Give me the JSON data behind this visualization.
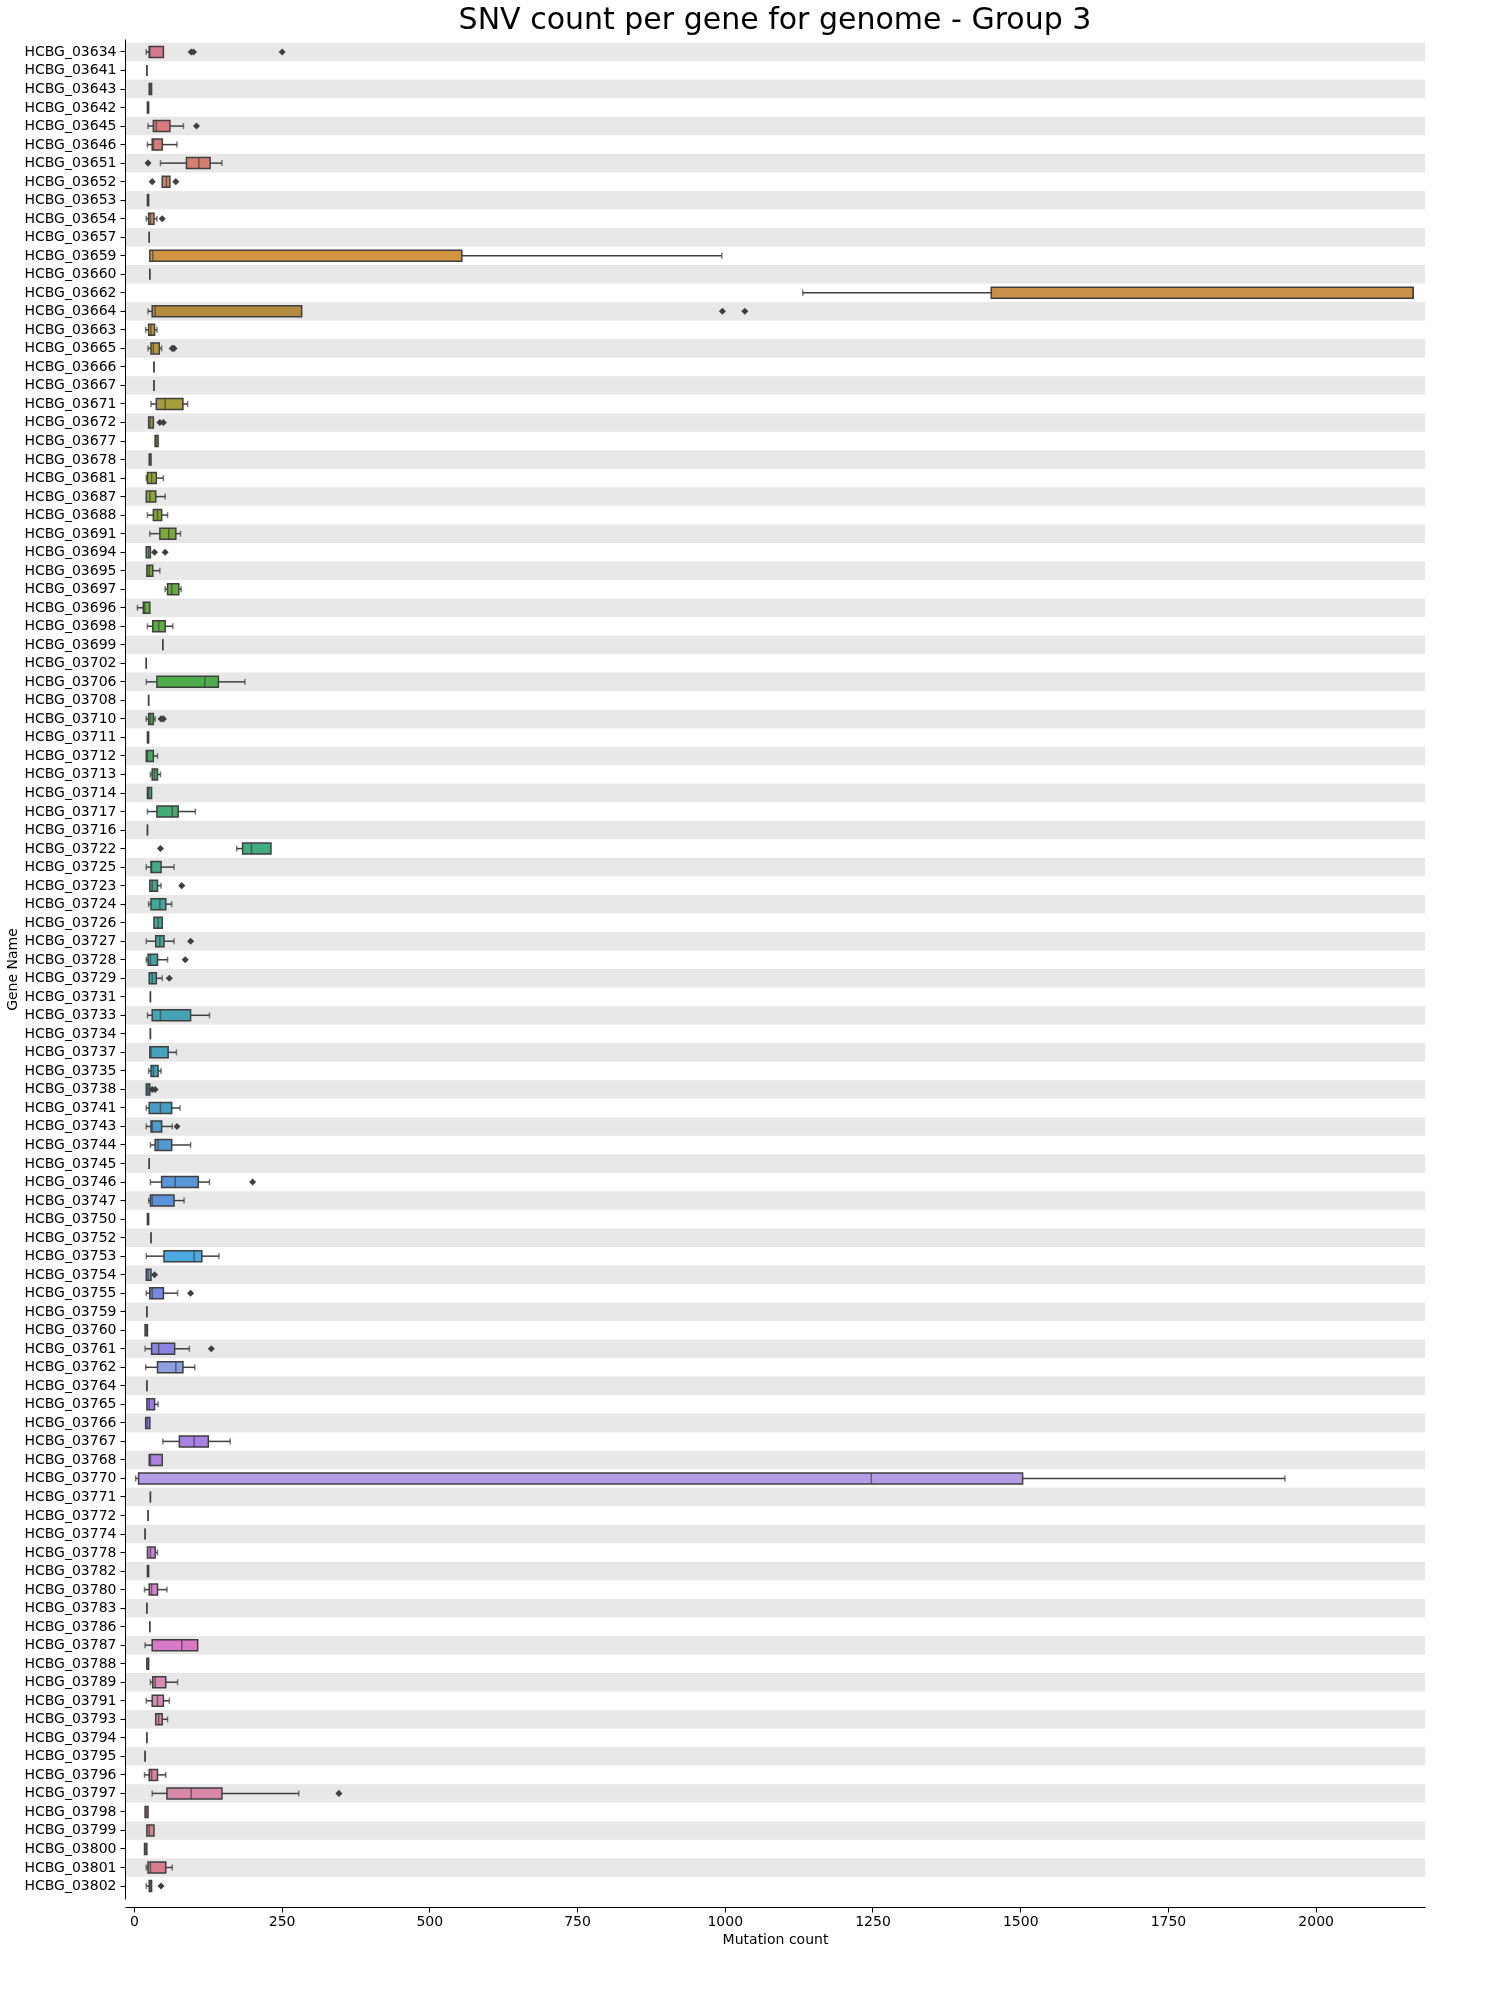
{
  "chart_data": {
    "type": "box",
    "title": "SNV count per gene for genome - Group 3",
    "xlabel": "Mutation count",
    "ylabel": "Gene Name",
    "orientation": "horizontal",
    "grid": false,
    "xlim": [
      -15,
      2185
    ],
    "xticks": [
      0,
      250,
      500,
      750,
      1000,
      1250,
      1500,
      1750,
      2000
    ],
    "categories": [
      "HCBG_03634",
      "HCBG_03641",
      "HCBG_03643",
      "HCBG_03642",
      "HCBG_03645",
      "HCBG_03646",
      "HCBG_03651",
      "HCBG_03652",
      "HCBG_03653",
      "HCBG_03654",
      "HCBG_03657",
      "HCBG_03659",
      "HCBG_03660",
      "HCBG_03662",
      "HCBG_03664",
      "HCBG_03663",
      "HCBG_03665",
      "HCBG_03666",
      "HCBG_03667",
      "HCBG_03671",
      "HCBG_03672",
      "HCBG_03677",
      "HCBG_03678",
      "HCBG_03681",
      "HCBG_03687",
      "HCBG_03688",
      "HCBG_03691",
      "HCBG_03694",
      "HCBG_03695",
      "HCBG_03697",
      "HCBG_03696",
      "HCBG_03698",
      "HCBG_03699",
      "HCBG_03702",
      "HCBG_03706",
      "HCBG_03708",
      "HCBG_03710",
      "HCBG_03711",
      "HCBG_03712",
      "HCBG_03713",
      "HCBG_03714",
      "HCBG_03717",
      "HCBG_03716",
      "HCBG_03722",
      "HCBG_03725",
      "HCBG_03723",
      "HCBG_03724",
      "HCBG_03726",
      "HCBG_03727",
      "HCBG_03728",
      "HCBG_03729",
      "HCBG_03731",
      "HCBG_03733",
      "HCBG_03734",
      "HCBG_03737",
      "HCBG_03735",
      "HCBG_03738",
      "HCBG_03741",
      "HCBG_03743",
      "HCBG_03744",
      "HCBG_03745",
      "HCBG_03746",
      "HCBG_03747",
      "HCBG_03750",
      "HCBG_03752",
      "HCBG_03753",
      "HCBG_03754",
      "HCBG_03755",
      "HCBG_03759",
      "HCBG_03760",
      "HCBG_03761",
      "HCBG_03762",
      "HCBG_03764",
      "HCBG_03765",
      "HCBG_03766",
      "HCBG_03767",
      "HCBG_03768",
      "HCBG_03770",
      "HCBG_03771",
      "HCBG_03772",
      "HCBG_03774",
      "HCBG_03778",
      "HCBG_03782",
      "HCBG_03780",
      "HCBG_03783",
      "HCBG_03786",
      "HCBG_03787",
      "HCBG_03788",
      "HCBG_03789",
      "HCBG_03791",
      "HCBG_03793",
      "HCBG_03794",
      "HCBG_03795",
      "HCBG_03796",
      "HCBG_03797",
      "HCBG_03798",
      "HCBG_03799",
      "HCBG_03800",
      "HCBG_03801",
      "HCBG_03802"
    ],
    "colors": [
      "#d6798c",
      "#3f3f3f",
      "#d67a86",
      "#d67b82",
      "#d67c7d",
      "#d57d78",
      "#d47f72",
      "#d3816c",
      "#d2836a",
      "#d18565",
      "#3f3f3f",
      "#d39442",
      "#3f3f3f",
      "#c9904c",
      "#b48b3f",
      "#be963d",
      "#b8983d",
      "#3f3f3f",
      "#3f3f3f",
      "#a69e3d",
      "#a0a03d",
      "#9aa23d",
      "#94a43d",
      "#8ea53d",
      "#88a63d",
      "#82a73d",
      "#7ca83d",
      "#76a93d",
      "#70aa3e",
      "#6aab40",
      "#64ab42",
      "#5eac44",
      "#3f3f3f",
      "#3f3f3f",
      "#4ead4c",
      "#3f3f3f",
      "#4aad58",
      "#48ad5e",
      "#47ad64",
      "#46ad6a",
      "#45ad70",
      "#44ad76",
      "#3f3f3f",
      "#43ac82",
      "#43ab88",
      "#43aa8e",
      "#43a994",
      "#43a89a",
      "#43a79f",
      "#43a6a4",
      "#44a5a9",
      "#3f3f3f",
      "#45a3b3",
      "#3f3f3f",
      "#47a1bc",
      "#489fc1",
      "#4a9ec5",
      "#4c9cc9",
      "#4e9bcd",
      "#5199d1",
      "#3f3f3f",
      "#5895d9",
      "#5c93dc",
      "#6191de",
      "#3f3f3f",
      "#4ea9e0",
      "#718be2",
      "#7789e3",
      "#3f3f3f",
      "#8385e4",
      "#8984e4",
      "#8ca0e0",
      "#3f3f3f",
      "#9b81e4",
      "#a181e4",
      "#a781e3",
      "#ad81e2",
      "#b69ce6",
      "#3f3f3f",
      "#3f3f3f",
      "#3f3f3f",
      "#c886d6",
      "#cc87d2",
      "#d088cd",
      "#3f3f3f",
      "#3f3f3f",
      "#d77ac8",
      "#d88bba",
      "#d88bb6",
      "#d98ab4",
      "#d989ae",
      "#3f3f3f",
      "#3f3f3f",
      "#d8869c",
      "#d888a8",
      "#d88596",
      "#d88490",
      "#d8838b",
      "#d67c8e",
      "#d88182"
    ],
    "boxes": [
      {
        "low": 21,
        "q1": 26,
        "median": 27,
        "q3": 50,
        "high": 50,
        "outliers": [
          97,
          101,
          251
        ]
      },
      {
        "low": 22,
        "q1": 22,
        "median": 22,
        "q3": 22,
        "high": 22
      },
      {
        "low": 26,
        "q1": 26,
        "median": 28,
        "q3": 30,
        "high": 30
      },
      {
        "low": 23,
        "q1": 23,
        "median": 24,
        "q3": 25,
        "high": 25
      },
      {
        "low": 24,
        "q1": 33,
        "median": 38,
        "q3": 61,
        "high": 84,
        "outliers": [
          106
        ]
      },
      {
        "low": 23,
        "q1": 31,
        "median": 33,
        "q3": 48,
        "high": 73
      },
      {
        "low": 45,
        "q1": 89,
        "median": 110,
        "q3": 129,
        "high": 149,
        "outliers": [
          24
        ]
      },
      {
        "low": 48,
        "q1": 48,
        "median": 55,
        "q3": 61,
        "high": 61,
        "outliers": [
          31,
          71
        ]
      },
      {
        "low": 23,
        "q1": 23,
        "median": 24,
        "q3": 25,
        "high": 25
      },
      {
        "low": 21,
        "q1": 25,
        "median": 28,
        "q3": 34,
        "high": 39,
        "outliers": [
          48
        ]
      },
      {
        "low": 26,
        "q1": 26,
        "median": 26,
        "q3": 26,
        "high": 26
      },
      {
        "low": 27,
        "q1": 27,
        "median": 32,
        "q3": 555,
        "high": 995
      },
      {
        "low": 27,
        "q1": 27,
        "median": 27,
        "q3": 27,
        "high": 27
      },
      {
        "low": 1132,
        "q1": 1451,
        "median": 2165,
        "q3": 2165,
        "high": 2165
      },
      {
        "low": 24,
        "q1": 31,
        "median": 36,
        "q3": 284,
        "high": 284,
        "outliers": [
          996,
          1034
        ]
      },
      {
        "low": 20,
        "q1": 25,
        "median": 29,
        "q3": 35,
        "high": 39
      },
      {
        "low": 24,
        "q1": 29,
        "median": 33,
        "q3": 43,
        "high": 47,
        "outliers": [
          65,
          68
        ]
      },
      {
        "low": 34,
        "q1": 34,
        "median": 34,
        "q3": 34,
        "high": 34
      },
      {
        "low": 34,
        "q1": 34,
        "median": 34,
        "q3": 34,
        "high": 34
      },
      {
        "low": 29,
        "q1": 38,
        "median": 53,
        "q3": 83,
        "high": 91
      },
      {
        "low": 25,
        "q1": 25,
        "median": 28,
        "q3": 33,
        "high": 33,
        "outliers": [
          44,
          50
        ]
      },
      {
        "low": 36,
        "q1": 36,
        "median": 38,
        "q3": 41,
        "high": 41
      },
      {
        "low": 26,
        "q1": 26,
        "median": 27,
        "q3": 29,
        "high": 29
      },
      {
        "low": 21,
        "q1": 23,
        "median": 30,
        "q3": 38,
        "high": 50
      },
      {
        "low": 21,
        "q1": 21,
        "median": 27,
        "q3": 37,
        "high": 53
      },
      {
        "low": 23,
        "q1": 33,
        "median": 40,
        "q3": 47,
        "high": 57
      },
      {
        "low": 27,
        "q1": 44,
        "median": 59,
        "q3": 71,
        "high": 79
      },
      {
        "low": 21,
        "q1": 21,
        "median": 25,
        "q3": 28,
        "high": 28,
        "outliers": [
          35,
          53
        ]
      },
      {
        "low": 22,
        "q1": 22,
        "median": 26,
        "q3": 32,
        "high": 44
      },
      {
        "low": 53,
        "q1": 57,
        "median": 64,
        "q3": 76,
        "high": 80
      },
      {
        "low": 6,
        "q1": 16,
        "median": 18,
        "q3": 27,
        "high": 27
      },
      {
        "low": 23,
        "q1": 32,
        "median": 42,
        "q3": 53,
        "high": 66
      },
      {
        "low": 49,
        "q1": 49,
        "median": 49,
        "q3": 49,
        "high": 49
      },
      {
        "low": 21,
        "q1": 21,
        "median": 21,
        "q3": 21,
        "high": 21
      },
      {
        "low": 21,
        "q1": 39,
        "median": 120,
        "q3": 143,
        "high": 188
      },
      {
        "low": 25,
        "q1": 25,
        "median": 25,
        "q3": 25,
        "high": 25
      },
      {
        "low": 21,
        "q1": 25,
        "median": 28,
        "q3": 33,
        "high": 36,
        "outliers": [
          46,
          50
        ]
      },
      {
        "low": 23,
        "q1": 23,
        "median": 24,
        "q3": 25,
        "high": 25
      },
      {
        "low": 21,
        "q1": 21,
        "median": 23,
        "q3": 33,
        "high": 40
      },
      {
        "low": 28,
        "q1": 31,
        "median": 35,
        "q3": 40,
        "high": 45
      },
      {
        "low": 23,
        "q1": 23,
        "median": 25,
        "q3": 30,
        "high": 30
      },
      {
        "low": 23,
        "q1": 39,
        "median": 65,
        "q3": 75,
        "high": 104
      },
      {
        "low": 23,
        "q1": 23,
        "median": 23,
        "q3": 23,
        "high": 23
      },
      {
        "low": 174,
        "q1": 184,
        "median": 199,
        "q3": 232,
        "high": 232,
        "outliers": [
          45
        ]
      },
      {
        "low": 21,
        "q1": 29,
        "median": 30,
        "q3": 46,
        "high": 68
      },
      {
        "low": 27,
        "q1": 27,
        "median": 31,
        "q3": 40,
        "high": 46,
        "outliers": [
          81
        ]
      },
      {
        "low": 25,
        "q1": 29,
        "median": 44,
        "q3": 54,
        "high": 64
      },
      {
        "low": 34,
        "q1": 34,
        "median": 41,
        "q3": 48,
        "high": 48
      },
      {
        "low": 21,
        "q1": 37,
        "median": 44,
        "q3": 51,
        "high": 68,
        "outliers": [
          96
        ]
      },
      {
        "low": 21,
        "q1": 24,
        "median": 28,
        "q3": 40,
        "high": 57,
        "outliers": [
          87
        ]
      },
      {
        "low": 26,
        "q1": 26,
        "median": 31,
        "q3": 38,
        "high": 48,
        "outliers": [
          60
        ]
      },
      {
        "low": 28,
        "q1": 28,
        "median": 28,
        "q3": 28,
        "high": 28
      },
      {
        "low": 23,
        "q1": 31,
        "median": 45,
        "q3": 96,
        "high": 128
      },
      {
        "low": 28,
        "q1": 28,
        "median": 28,
        "q3": 28,
        "high": 28
      },
      {
        "low": 27,
        "q1": 27,
        "median": 29,
        "q3": 58,
        "high": 72
      },
      {
        "low": 25,
        "q1": 29,
        "median": 33,
        "q3": 41,
        "high": 46
      },
      {
        "low": 21,
        "q1": 21,
        "median": 24,
        "q3": 27,
        "high": 27,
        "outliers": [
          31,
          36
        ]
      },
      {
        "low": 21,
        "q1": 26,
        "median": 45,
        "q3": 64,
        "high": 78
      },
      {
        "low": 21,
        "q1": 29,
        "median": 31,
        "q3": 47,
        "high": 65,
        "outliers": [
          73
        ]
      },
      {
        "low": 28,
        "q1": 36,
        "median": 41,
        "q3": 64,
        "high": 96
      },
      {
        "low": 26,
        "q1": 26,
        "median": 26,
        "q3": 26,
        "high": 26
      },
      {
        "low": 28,
        "q1": 47,
        "median": 70,
        "q3": 109,
        "high": 128,
        "outliers": [
          201
        ]
      },
      {
        "low": 25,
        "q1": 28,
        "median": 31,
        "q3": 68,
        "high": 85
      },
      {
        "low": 23,
        "q1": 23,
        "median": 24,
        "q3": 25,
        "high": 25
      },
      {
        "low": 29,
        "q1": 29,
        "median": 29,
        "q3": 29,
        "high": 29
      },
      {
        "low": 21,
        "q1": 51,
        "median": 102,
        "q3": 115,
        "high": 144
      },
      {
        "low": 21,
        "q1": 21,
        "median": 24,
        "q3": 29,
        "high": 29,
        "outliers": [
          35
        ]
      },
      {
        "low": 21,
        "q1": 27,
        "median": 31,
        "q3": 50,
        "high": 74,
        "outliers": [
          96
        ]
      },
      {
        "low": 22,
        "q1": 22,
        "median": 22,
        "q3": 22,
        "high": 22
      },
      {
        "low": 19,
        "q1": 19,
        "median": 21,
        "q3": 23,
        "high": 23
      },
      {
        "low": 19,
        "q1": 30,
        "median": 42,
        "q3": 69,
        "high": 94,
        "outliers": [
          131
        ]
      },
      {
        "low": 20,
        "q1": 40,
        "median": 71,
        "q3": 83,
        "high": 103
      },
      {
        "low": 22,
        "q1": 22,
        "median": 22,
        "q3": 22,
        "high": 22
      },
      {
        "low": 22,
        "q1": 22,
        "median": 26,
        "q3": 35,
        "high": 41
      },
      {
        "low": 20,
        "q1": 20,
        "median": 23,
        "q3": 27,
        "high": 27
      },
      {
        "low": 49,
        "q1": 77,
        "median": 102,
        "q3": 126,
        "high": 163
      },
      {
        "low": 26,
        "q1": 26,
        "median": 28,
        "q3": 48,
        "high": 48
      },
      {
        "low": 3,
        "q1": 8,
        "median": 1248,
        "q3": 1504,
        "high": 1948
      },
      {
        "low": 28,
        "q1": 28,
        "median": 28,
        "q3": 28,
        "high": 28
      },
      {
        "low": 24,
        "q1": 24,
        "median": 24,
        "q3": 24,
        "high": 24
      },
      {
        "low": 19,
        "q1": 19,
        "median": 19,
        "q3": 19,
        "high": 19
      },
      {
        "low": 23,
        "q1": 23,
        "median": 28,
        "q3": 36,
        "high": 40
      },
      {
        "low": 23,
        "q1": 23,
        "median": 24,
        "q3": 25,
        "high": 25
      },
      {
        "low": 18,
        "q1": 26,
        "median": 30,
        "q3": 40,
        "high": 56
      },
      {
        "low": 22,
        "q1": 22,
        "median": 22,
        "q3": 22,
        "high": 22
      },
      {
        "low": 27,
        "q1": 27,
        "median": 27,
        "q3": 27,
        "high": 27
      },
      {
        "low": 19,
        "q1": 31,
        "median": 81,
        "q3": 108,
        "high": 108
      },
      {
        "low": 22,
        "q1": 22,
        "median": 23,
        "q3": 25,
        "high": 25
      },
      {
        "low": 28,
        "q1": 32,
        "median": 36,
        "q3": 54,
        "high": 74
      },
      {
        "low": 21,
        "q1": 31,
        "median": 40,
        "q3": 50,
        "high": 60
      },
      {
        "low": 37,
        "q1": 37,
        "median": 42,
        "q3": 48,
        "high": 57
      },
      {
        "low": 22,
        "q1": 22,
        "median": 22,
        "q3": 22,
        "high": 22
      },
      {
        "low": 19,
        "q1": 19,
        "median": 19,
        "q3": 19,
        "high": 19
      },
      {
        "low": 18,
        "q1": 26,
        "median": 30,
        "q3": 40,
        "high": 54
      },
      {
        "low": 31,
        "q1": 56,
        "median": 97,
        "q3": 149,
        "high": 279,
        "outliers": [
          347
        ]
      },
      {
        "low": 19,
        "q1": 19,
        "median": 21,
        "q3": 24,
        "high": 24
      },
      {
        "low": 22,
        "q1": 22,
        "median": 26,
        "q3": 34,
        "high": 34
      },
      {
        "low": 18,
        "q1": 18,
        "median": 20,
        "q3": 22,
        "high": 22
      },
      {
        "low": 21,
        "q1": 24,
        "median": 28,
        "q3": 54,
        "high": 65
      },
      {
        "low": 21,
        "q1": 26,
        "median": 28,
        "q3": 30,
        "high": 30,
        "outliers": [
          46
        ]
      }
    ],
    "bands": [
      {
        "axis": "y",
        "from": "HCBG_03634",
        "to": "HCBG_03634",
        "color": "#e8e8e8"
      },
      {
        "axis": "y",
        "from": "HCBG_03643",
        "to": "HCBG_03643",
        "color": "#e8e8e8"
      },
      {
        "axis": "y",
        "from": "HCBG_03645",
        "to": "HCBG_03645",
        "color": "#e8e8e8"
      },
      {
        "axis": "y",
        "from": "HCBG_03651",
        "to": "HCBG_03651",
        "color": "#e8e8e8"
      },
      {
        "axis": "y",
        "from": "HCBG_03653",
        "to": "HCBG_03653",
        "color": "#e8e8e8"
      },
      {
        "axis": "y",
        "from": "HCBG_03657",
        "to": "HCBG_03657",
        "color": "#e8e8e8"
      },
      {
        "axis": "y",
        "from": "HCBG_03660",
        "to": "HCBG_03660",
        "color": "#e8e8e8"
      },
      {
        "axis": "y",
        "from": "HCBG_03664",
        "to": "HCBG_03664",
        "color": "#e8e8e8"
      },
      {
        "axis": "y",
        "from": "HCBG_03665",
        "to": "HCBG_03665",
        "color": "#e8e8e8"
      },
      {
        "axis": "y",
        "from": "HCBG_03667",
        "to": "HCBG_03667",
        "color": "#e8e8e8"
      },
      {
        "axis": "y",
        "from": "HCBG_03672",
        "to": "HCBG_03672",
        "color": "#e8e8e8"
      },
      {
        "axis": "y",
        "from": "HCBG_03678",
        "to": "HCBG_03678",
        "color": "#e8e8e8"
      },
      {
        "axis": "y",
        "from": "HCBG_03687",
        "to": "HCBG_03687",
        "color": "#e8e8e8"
      },
      {
        "axis": "y",
        "from": "HCBG_03691",
        "to": "HCBG_03691",
        "color": "#e8e8e8"
      },
      {
        "axis": "y",
        "from": "HCBG_03695",
        "to": "HCBG_03695",
        "color": "#e8e8e8"
      },
      {
        "axis": "y",
        "from": "HCBG_03696",
        "to": "HCBG_03696",
        "color": "#e8e8e8"
      },
      {
        "axis": "y",
        "from": "HCBG_03699",
        "to": "HCBG_03699",
        "color": "#e8e8e8"
      },
      {
        "axis": "y",
        "from": "HCBG_03706",
        "to": "HCBG_03706",
        "color": "#e8e8e8"
      },
      {
        "axis": "y",
        "from": "HCBG_03710",
        "to": "HCBG_03710",
        "color": "#e8e8e8"
      },
      {
        "axis": "y",
        "from": "HCBG_03712",
        "to": "HCBG_03712",
        "color": "#e8e8e8"
      },
      {
        "axis": "y",
        "from": "HCBG_03714",
        "to": "HCBG_03714",
        "color": "#e8e8e8"
      },
      {
        "axis": "y",
        "from": "HCBG_03716",
        "to": "HCBG_03716",
        "color": "#e8e8e8"
      },
      {
        "axis": "y",
        "from": "HCBG_03725",
        "to": "HCBG_03725",
        "color": "#e8e8e8"
      },
      {
        "axis": "y",
        "from": "HCBG_03724",
        "to": "HCBG_03724",
        "color": "#e8e8e8"
      },
      {
        "axis": "y",
        "from": "HCBG_03727",
        "to": "HCBG_03727",
        "color": "#e8e8e8"
      },
      {
        "axis": "y",
        "from": "HCBG_03729",
        "to": "HCBG_03729",
        "color": "#e8e8e8"
      },
      {
        "axis": "y",
        "from": "HCBG_03733",
        "to": "HCBG_03733",
        "color": "#e8e8e8"
      },
      {
        "axis": "y",
        "from": "HCBG_03737",
        "to": "HCBG_03737",
        "color": "#e8e8e8"
      },
      {
        "axis": "y",
        "from": "HCBG_03738",
        "to": "HCBG_03738",
        "color": "#e8e8e8"
      },
      {
        "axis": "y",
        "from": "HCBG_03743",
        "to": "HCBG_03743",
        "color": "#e8e8e8"
      },
      {
        "axis": "y",
        "from": "HCBG_03745",
        "to": "HCBG_03745",
        "color": "#e8e8e8"
      },
      {
        "axis": "y",
        "from": "HCBG_03747",
        "to": "HCBG_03747",
        "color": "#e8e8e8"
      },
      {
        "axis": "y",
        "from": "HCBG_03752",
        "to": "HCBG_03752",
        "color": "#e8e8e8"
      },
      {
        "axis": "y",
        "from": "HCBG_03754",
        "to": "HCBG_03754",
        "color": "#e8e8e8"
      },
      {
        "axis": "y",
        "from": "HCBG_03759",
        "to": "HCBG_03759",
        "color": "#e8e8e8"
      },
      {
        "axis": "y",
        "from": "HCBG_03761",
        "to": "HCBG_03761",
        "color": "#e8e8e8"
      },
      {
        "axis": "y",
        "from": "HCBG_03764",
        "to": "HCBG_03764",
        "color": "#e8e8e8"
      },
      {
        "axis": "y",
        "from": "HCBG_03766",
        "to": "HCBG_03766",
        "color": "#e8e8e8"
      },
      {
        "axis": "y",
        "from": "HCBG_03768",
        "to": "HCBG_03768",
        "color": "#e8e8e8"
      },
      {
        "axis": "y",
        "from": "HCBG_03771",
        "to": "HCBG_03771",
        "color": "#e8e8e8"
      },
      {
        "axis": "y",
        "from": "HCBG_03774",
        "to": "HCBG_03774",
        "color": "#e8e8e8"
      },
      {
        "axis": "y",
        "from": "HCBG_03782",
        "to": "HCBG_03782",
        "color": "#e8e8e8"
      },
      {
        "axis": "y",
        "from": "HCBG_03783",
        "to": "HCBG_03783",
        "color": "#e8e8e8"
      },
      {
        "axis": "y",
        "from": "HCBG_03787",
        "to": "HCBG_03787",
        "color": "#e8e8e8"
      },
      {
        "axis": "y",
        "from": "HCBG_03789",
        "to": "HCBG_03789",
        "color": "#e8e8e8"
      },
      {
        "axis": "y",
        "from": "HCBG_03793",
        "to": "HCBG_03793",
        "color": "#e8e8e8"
      },
      {
        "axis": "y",
        "from": "HCBG_03795",
        "to": "HCBG_03795",
        "color": "#e8e8e8"
      },
      {
        "axis": "y",
        "from": "HCBG_03797",
        "to": "HCBG_03797",
        "color": "#e8e8e8"
      },
      {
        "axis": "y",
        "from": "HCBG_03799",
        "to": "HCBG_03799",
        "color": "#e8e8e8"
      },
      {
        "axis": "y",
        "from": "HCBG_03801",
        "to": "HCBG_03801",
        "color": "#e8e8e8"
      }
    ]
  }
}
